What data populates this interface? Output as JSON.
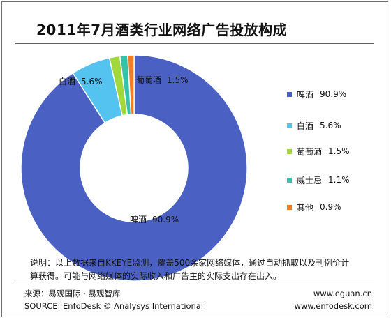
{
  "chart_data": {
    "type": "pie",
    "title": "2011年7月酒类行业网络广告投放构成",
    "categories": [
      "啤酒",
      "白酒",
      "葡萄酒",
      "威士忌",
      "其他"
    ],
    "values": [
      90.9,
      5.6,
      1.5,
      1.1,
      0.9
    ],
    "unit": "%",
    "legend": "right",
    "colors": [
      "#4a61c3",
      "#54c3f0",
      "#a1d93c",
      "#34c2a8",
      "#f47c23"
    ],
    "data_labels": [
      {
        "name": "啤酒",
        "value": "90.9%"
      },
      {
        "name": "白酒",
        "value": "5.6%"
      },
      {
        "name": "葡萄酒",
        "value": "1.5%"
      }
    ],
    "legend_entries": [
      {
        "name": "啤酒",
        "value": "90.9%"
      },
      {
        "name": "白酒",
        "value": "5.6%"
      },
      {
        "name": "葡萄酒",
        "value": "1.5%"
      },
      {
        "name": "威士忌",
        "value": "1.1%"
      },
      {
        "name": "其他",
        "value": "0.9%"
      }
    ]
  },
  "note": {
    "line1": "说明：以上数据来自KKEYE监测，覆盖500余家网络媒体，通过自动抓取以及刊例价计",
    "line2": "算获得。可能与网络媒体的实际收入和广告主的实际支出存在出入。"
  },
  "source": {
    "line1": "来源：易观国际 · 易观智库",
    "line2": "SOURCE: EnfoDesk © Analysys International"
  },
  "urls": {
    "line1": "www.eguan.cn",
    "line2": "www.enfodesk.com"
  }
}
